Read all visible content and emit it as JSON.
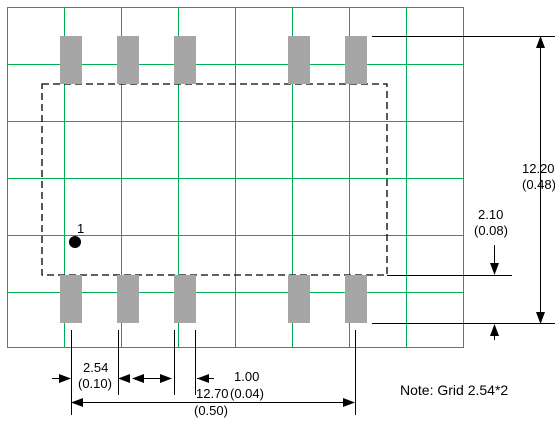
{
  "colors": {
    "grid": "#00b050",
    "pad": "#a6a6a6",
    "outline": "#000000",
    "ink": "#000000"
  },
  "pin1_label": "1",
  "dimensions": {
    "height_total": {
      "mm": "12.20",
      "in": "(0.48)"
    },
    "pad_gap": {
      "mm": "2.10",
      "in": "(0.08)"
    },
    "pitch": {
      "mm": "2.54",
      "in": "(0.10)"
    },
    "pad_width": {
      "mm": "1.00",
      "in": "(0.04)"
    },
    "span": {
      "mm": "12.70",
      "in": "(0.50)"
    }
  },
  "note": "Note: Grid 2.54*2"
}
